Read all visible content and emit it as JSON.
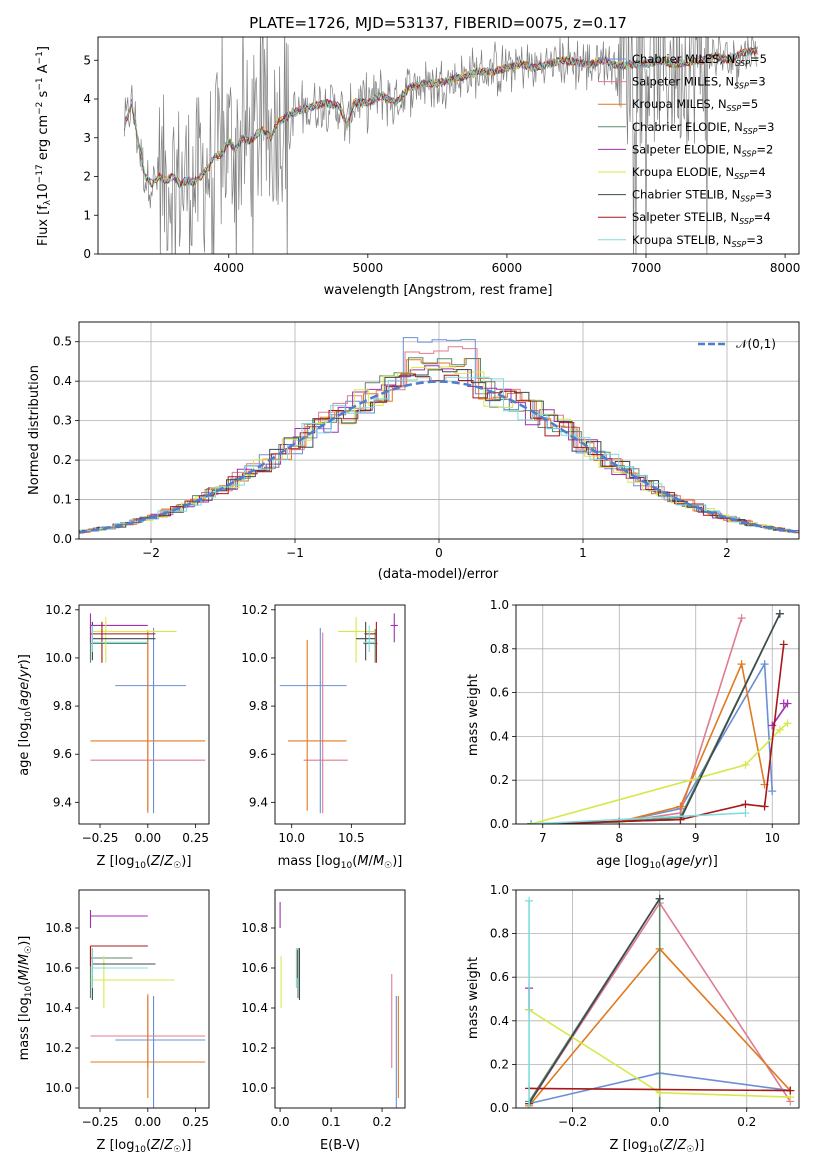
{
  "figure_title": "PLATE=1726, MJD=53137, FIBERID=0075, z=0.17",
  "models": [
    {
      "name": "Chabrier MILES",
      "nssp": "5",
      "color": "#6b8fd6"
    },
    {
      "name": "Salpeter MILES",
      "nssp": "3",
      "color": "#e07b91"
    },
    {
      "name": "Kroupa MILES",
      "nssp": "5",
      "color": "#e07a22"
    },
    {
      "name": "Chabrier ELODIE",
      "nssp": "3",
      "color": "#5e8a6a"
    },
    {
      "name": "Salpeter ELODIE",
      "nssp": "2",
      "color": "#a030b0"
    },
    {
      "name": "Kroupa ELODIE",
      "nssp": "4",
      "color": "#d8e84a"
    },
    {
      "name": "Chabrier STELIB",
      "nssp": "3",
      "color": "#3d4a4f"
    },
    {
      "name": "Salpeter STELIB",
      "nssp": "4",
      "color": "#a81818"
    },
    {
      "name": "Kroupa STELIB",
      "nssp": "3",
      "color": "#7fdcdc"
    }
  ],
  "chart_data": [
    {
      "panel": "spectrum",
      "type": "line",
      "xlabel": "wavelength [Angstrom, rest frame]",
      "ylabel": "Flux [f_λ 10^-17 erg cm^-2 s^-1 A^-1]",
      "xlim": [
        3060,
        8100
      ],
      "ylim": [
        0,
        5.6
      ],
      "xticks": [
        4000,
        5000,
        6000,
        7000,
        8000
      ],
      "yticks": [
        0,
        1,
        2,
        3,
        4,
        5
      ],
      "data_color": "#808080",
      "model_curve": {
        "x": [
          3250,
          3300,
          3350,
          3400,
          3450,
          3500,
          3550,
          3600,
          3650,
          3700,
          3750,
          3800,
          3850,
          3900,
          3950,
          4000,
          4050,
          4100,
          4150,
          4200,
          4250,
          4300,
          4350,
          4400,
          4450,
          4500,
          4600,
          4700,
          4800,
          4850,
          4900,
          4950,
          5000,
          5100,
          5200,
          5300,
          5400,
          5500,
          5600,
          5700,
          5800,
          5900,
          6000,
          6100,
          6200,
          6300,
          6400,
          6500,
          6600,
          6700,
          6800,
          6900,
          7000,
          7100,
          7200,
          7300,
          7400,
          7500,
          7600,
          7700,
          7800
        ],
        "y": [
          3.3,
          3.9,
          2.9,
          2.0,
          1.8,
          2.0,
          1.9,
          2.0,
          1.8,
          1.9,
          1.85,
          2.0,
          2.2,
          2.5,
          2.6,
          2.9,
          2.7,
          3.0,
          2.9,
          3.1,
          3.2,
          3.0,
          3.4,
          3.5,
          3.6,
          3.7,
          3.8,
          3.9,
          3.8,
          3.3,
          3.9,
          3.9,
          3.9,
          4.1,
          3.9,
          4.3,
          4.4,
          4.4,
          4.5,
          4.6,
          4.7,
          4.7,
          4.8,
          4.9,
          4.8,
          4.9,
          5.0,
          4.95,
          4.9,
          5.0,
          4.85,
          4.9,
          4.9,
          5.0,
          4.9,
          4.95,
          5.0,
          5.1,
          5.0,
          5.2,
          5.25
        ]
      }
    },
    {
      "panel": "residual_distribution",
      "type": "histogram",
      "xlabel": "(data-model)/error",
      "ylabel": "Normed distribution",
      "xlim": [
        -2.5,
        2.5
      ],
      "ylim": [
        0,
        0.55
      ],
      "xticks": [
        -2,
        -1,
        0,
        1,
        2
      ],
      "yticks": [
        0.0,
        0.1,
        0.2,
        0.3,
        0.4,
        0.5
      ],
      "grid": true,
      "reference": {
        "label": "𝒩(0,1)",
        "mean": 0,
        "sigma": 1,
        "color": "#4a7fd0",
        "legend": "upper right"
      },
      "bin_width": 0.1,
      "peak_values": [
        0.52,
        0.49,
        0.46,
        0.46,
        0.45,
        0.44,
        0.43,
        0.42,
        0.41
      ]
    },
    {
      "panel": "age_vs_Z",
      "type": "errorbar",
      "xlabel": "Z [log10(Z/Z☉)]",
      "ylabel": "age  [log10(age/yr)]",
      "xlim": [
        -0.36,
        0.32
      ],
      "ylim": [
        9.31,
        10.22
      ],
      "xticks": [
        -0.25,
        0.0,
        0.25
      ],
      "xticklabels": [
        "−0.25",
        "0.00",
        "0.25"
      ],
      "yticks": [
        9.4,
        9.6,
        9.8,
        10.0,
        10.2
      ],
      "points": [
        {
          "model": 0,
          "x": 0.03,
          "y": 9.885,
          "xerr": [
            0.2,
            0.17
          ],
          "yerr": [
            0.53,
            0.24
          ]
        },
        {
          "model": 1,
          "x": 0.0,
          "y": 9.575,
          "xerr": [
            0.3,
            0.3
          ],
          "yerr": [
            0.22,
            0.53
          ]
        },
        {
          "model": 2,
          "x": 0.0,
          "y": 9.655,
          "xerr": [
            0.3,
            0.3
          ],
          "yerr": [
            0.29,
            0.46
          ]
        },
        {
          "model": 3,
          "x": -0.3,
          "y": 10.06,
          "xerr": [
            0.0,
            0.3
          ],
          "yerr": [
            0.08,
            0.08
          ]
        },
        {
          "model": 4,
          "x": -0.3,
          "y": 10.135,
          "xerr": [
            0.0,
            0.3
          ],
          "yerr": [
            0.07,
            0.05
          ]
        },
        {
          "model": 5,
          "x": -0.22,
          "y": 10.11,
          "xerr": [
            0.07,
            0.37
          ],
          "yerr": [
            0.13,
            0.06
          ]
        },
        {
          "model": 6,
          "x": -0.29,
          "y": 10.08,
          "xerr": [
            0.0,
            0.33
          ],
          "yerr": [
            0.09,
            0.07
          ]
        },
        {
          "model": 7,
          "x": -0.24,
          "y": 10.1,
          "xerr": [
            0.06,
            0.28
          ],
          "yerr": [
            0.12,
            0.05
          ]
        },
        {
          "model": 8,
          "x": -0.29,
          "y": 10.065,
          "xerr": [
            0.0,
            0.29
          ],
          "yerr": [
            0.04,
            0.07
          ]
        }
      ]
    },
    {
      "panel": "age_vs_mass",
      "type": "errorbar",
      "xlabel": "mass [log10(M/M☉)]",
      "ylabel": "",
      "xlim": [
        9.86,
        10.95
      ],
      "ylim": [
        9.31,
        10.22
      ],
      "xticks": [
        10.0,
        10.5
      ],
      "xticklabels": [
        "10.0",
        "10.5"
      ],
      "yticks": [
        9.4,
        9.6,
        9.8,
        10.0,
        10.2
      ],
      "points": [
        {
          "model": 0,
          "x": 10.24,
          "y": 9.885,
          "xerr": [
            0.34,
            0.22
          ],
          "yerr": [
            0.53,
            0.24
          ]
        },
        {
          "model": 1,
          "x": 10.26,
          "y": 9.575,
          "xerr": [
            0.16,
            0.21
          ],
          "yerr": [
            0.22,
            0.53
          ]
        },
        {
          "model": 2,
          "x": 10.13,
          "y": 9.655,
          "xerr": [
            0.16,
            0.33
          ],
          "yerr": [
            0.29,
            0.42
          ]
        },
        {
          "model": 3,
          "x": 10.7,
          "y": 10.06,
          "xerr": [
            0.1,
            0.02
          ],
          "yerr": [
            0.08,
            0.06
          ]
        },
        {
          "model": 4,
          "x": 10.86,
          "y": 10.135,
          "xerr": [
            0.03,
            0.03
          ],
          "yerr": [
            0.07,
            0.05
          ]
        },
        {
          "model": 5,
          "x": 10.54,
          "y": 10.11,
          "xerr": [
            0.15,
            0.15
          ],
          "yerr": [
            0.13,
            0.06
          ]
        },
        {
          "model": 6,
          "x": 10.62,
          "y": 10.08,
          "xerr": [
            0.08,
            0.08
          ],
          "yerr": [
            0.09,
            0.07
          ]
        },
        {
          "model": 7,
          "x": 10.71,
          "y": 10.1,
          "xerr": [
            0.1,
            0.0
          ],
          "yerr": [
            0.12,
            0.05
          ]
        },
        {
          "model": 8,
          "x": 10.65,
          "y": 10.065,
          "xerr": [
            0.05,
            0.05
          ],
          "yerr": [
            0.04,
            0.07
          ]
        }
      ]
    },
    {
      "panel": "mass_weight_vs_age",
      "type": "line",
      "xlabel": "age  [log10(age/yr)]",
      "ylabel": "mass weight",
      "xlim": [
        6.65,
        10.35
      ],
      "ylim": [
        0,
        1.0
      ],
      "xticks": [
        7,
        8,
        9,
        10
      ],
      "yticks": [
        0.0,
        0.2,
        0.4,
        0.6,
        0.8,
        1.0
      ],
      "grid": true,
      "series": [
        {
          "model": 0,
          "x": [
            6.85,
            8.0,
            8.8,
            9.9,
            10.0
          ],
          "y": [
            0.0,
            0.01,
            0.07,
            0.73,
            0.15
          ]
        },
        {
          "model": 1,
          "x": [
            6.85,
            8.0,
            8.8,
            9.6
          ],
          "y": [
            0.0,
            0.01,
            0.05,
            0.94
          ]
        },
        {
          "model": 2,
          "x": [
            6.85,
            8.0,
            8.8,
            9.6,
            9.9
          ],
          "y": [
            0.0,
            0.01,
            0.08,
            0.73,
            0.18
          ]
        },
        {
          "model": 3,
          "x": [
            6.85,
            8.0,
            8.8,
            10.1
          ],
          "y": [
            0.0,
            0.01,
            0.03,
            0.96
          ]
        },
        {
          "model": 4,
          "x": [
            10.0,
            10.2,
            10.15
          ],
          "y": [
            0.45,
            0.55,
            0.55
          ]
        },
        {
          "model": 5,
          "x": [
            6.85,
            9.65,
            10.1,
            10.2
          ],
          "y": [
            0.0,
            0.27,
            0.43,
            0.46
          ]
        },
        {
          "model": 6,
          "x": [
            6.85,
            8.8,
            10.1
          ],
          "y": [
            0.0,
            0.02,
            0.96
          ]
        },
        {
          "model": 7,
          "x": [
            6.85,
            8.8,
            9.65,
            9.9,
            10.15
          ],
          "y": [
            0.0,
            0.02,
            0.09,
            0.08,
            0.82
          ]
        },
        {
          "model": 8,
          "x": [
            6.85,
            9.65
          ],
          "y": [
            0.0,
            0.05
          ]
        }
      ]
    },
    {
      "panel": "mass_vs_Z",
      "type": "errorbar",
      "xlabel": "Z [log10(Z/Z☉)]",
      "ylabel": "mass [log10(M/M☉)]",
      "xlim": [
        -0.36,
        0.32
      ],
      "ylim": [
        9.9,
        10.99
      ],
      "xticks": [
        -0.25,
        0.0,
        0.25
      ],
      "xticklabels": [
        "−0.25",
        "0.00",
        "0.25"
      ],
      "yticks": [
        10.0,
        10.2,
        10.4,
        10.6,
        10.8
      ],
      "points": [
        {
          "model": 0,
          "x": 0.03,
          "y": 10.24,
          "xerr": [
            0.2,
            0.27
          ],
          "yerr": [
            0.34,
            0.22
          ]
        },
        {
          "model": 1,
          "x": 0.0,
          "y": 10.26,
          "xerr": [
            0.3,
            0.3
          ],
          "yerr": [
            0.16,
            0.21
          ]
        },
        {
          "model": 2,
          "x": 0.0,
          "y": 10.13,
          "xerr": [
            0.3,
            0.3
          ],
          "yerr": [
            0.18,
            0.33
          ]
        },
        {
          "model": 3,
          "x": -0.3,
          "y": 10.65,
          "xerr": [
            0.0,
            0.22
          ],
          "yerr": [
            0.2,
            0.05
          ]
        },
        {
          "model": 4,
          "x": -0.3,
          "y": 10.86,
          "xerr": [
            0.0,
            0.3
          ],
          "yerr": [
            0.06,
            0.03
          ]
        },
        {
          "model": 5,
          "x": -0.23,
          "y": 10.54,
          "xerr": [
            0.07,
            0.37
          ],
          "yerr": [
            0.14,
            0.12
          ]
        },
        {
          "model": 6,
          "x": -0.29,
          "y": 10.62,
          "xerr": [
            0.0,
            0.33
          ],
          "yerr": [
            0.18,
            0.08
          ]
        },
        {
          "model": 7,
          "x": -0.3,
          "y": 10.71,
          "xerr": [
            0.0,
            0.3
          ],
          "yerr": [
            0.1,
            0.0
          ]
        },
        {
          "model": 8,
          "x": -0.29,
          "y": 10.6,
          "xerr": [
            0.0,
            0.29
          ],
          "yerr": [
            0.1,
            0.1
          ]
        }
      ]
    },
    {
      "panel": "mass_vs_ebv",
      "type": "errorbar",
      "xlabel": "E(B-V)",
      "ylabel": "",
      "xlim": [
        -0.01,
        0.245
      ],
      "ylim": [
        9.9,
        10.99
      ],
      "xticks": [
        0.0,
        0.1,
        0.2
      ],
      "xticklabels": [
        "0.0",
        "0.1",
        "0.2"
      ],
      "yticks": [
        10.0,
        10.2,
        10.4,
        10.6,
        10.8
      ],
      "points": [
        {
          "model": 0,
          "x": 0.228,
          "y": 10.24,
          "xerr": [
            0.0,
            0.0
          ],
          "yerr": [
            0.34,
            0.22
          ]
        },
        {
          "model": 1,
          "x": 0.219,
          "y": 10.26,
          "xerr": [
            0.0,
            0.0
          ],
          "yerr": [
            0.16,
            0.31
          ]
        },
        {
          "model": 2,
          "x": 0.232,
          "y": 10.13,
          "xerr": [
            0.0,
            0.0
          ],
          "yerr": [
            0.18,
            0.33
          ]
        },
        {
          "model": 3,
          "x": 0.035,
          "y": 10.65,
          "xerr": [
            0.0,
            0.0
          ],
          "yerr": [
            0.2,
            0.05
          ]
        },
        {
          "model": 4,
          "x": 0.0,
          "y": 10.86,
          "xerr": [
            0.0,
            0.0
          ],
          "yerr": [
            0.06,
            0.07
          ]
        },
        {
          "model": 5,
          "x": 0.002,
          "y": 10.54,
          "xerr": [
            0.0,
            0.0
          ],
          "yerr": [
            0.14,
            0.12
          ]
        },
        {
          "model": 6,
          "x": 0.038,
          "y": 10.62,
          "xerr": [
            0.0,
            0.0
          ],
          "yerr": [
            0.18,
            0.08
          ]
        },
        {
          "model": 7,
          "x": 0.033,
          "y": 10.65,
          "xerr": [
            0.0,
            0.0
          ],
          "yerr": [
            0.1,
            0.04
          ]
        },
        {
          "model": 8,
          "x": 0.032,
          "y": 10.6,
          "xerr": [
            0.0,
            0.0
          ],
          "yerr": [
            0.1,
            0.1
          ]
        }
      ]
    },
    {
      "panel": "mass_weight_vs_Z",
      "type": "line",
      "xlabel": "Z [log10(Z/Z☉)]",
      "ylabel": "mass weight",
      "xlim": [
        -0.33,
        0.32
      ],
      "ylim": [
        0,
        1.0
      ],
      "xticks": [
        -0.2,
        0.0,
        0.2
      ],
      "xticklabels": [
        "−0.2",
        "0.0",
        "0.2"
      ],
      "yticks": [
        0.0,
        0.2,
        0.4,
        0.6,
        0.8,
        1.0
      ],
      "grid": true,
      "series": [
        {
          "model": 0,
          "x": [
            -0.3,
            0.0,
            0.3
          ],
          "y": [
            0.02,
            0.16,
            0.08
          ]
        },
        {
          "model": 1,
          "x": [
            -0.3,
            0.0,
            0.3
          ],
          "y": [
            0.02,
            0.94,
            0.03
          ]
        },
        {
          "model": 2,
          "x": [
            -0.3,
            0.0,
            0.3
          ],
          "y": [
            0.01,
            0.73,
            0.08
          ]
        },
        {
          "model": 3,
          "x": [
            -0.3,
            0.0,
            0.0
          ],
          "y": [
            0.03,
            0.96,
            0.0
          ]
        },
        {
          "model": 4,
          "x": [
            -0.3,
            -0.3
          ],
          "y": [
            0.55,
            0.45
          ]
        },
        {
          "model": 5,
          "x": [
            -0.3,
            0.0,
            0.3
          ],
          "y": [
            0.45,
            0.07,
            0.05
          ]
        },
        {
          "model": 6,
          "x": [
            -0.3,
            0.0
          ],
          "y": [
            0.02,
            0.96
          ]
        },
        {
          "model": 7,
          "x": [
            -0.3,
            0.3
          ],
          "y": [
            0.09,
            0.08
          ]
        },
        {
          "model": 8,
          "x": [
            -0.3,
            -0.3
          ],
          "y": [
            0.0,
            0.95
          ]
        }
      ]
    }
  ]
}
